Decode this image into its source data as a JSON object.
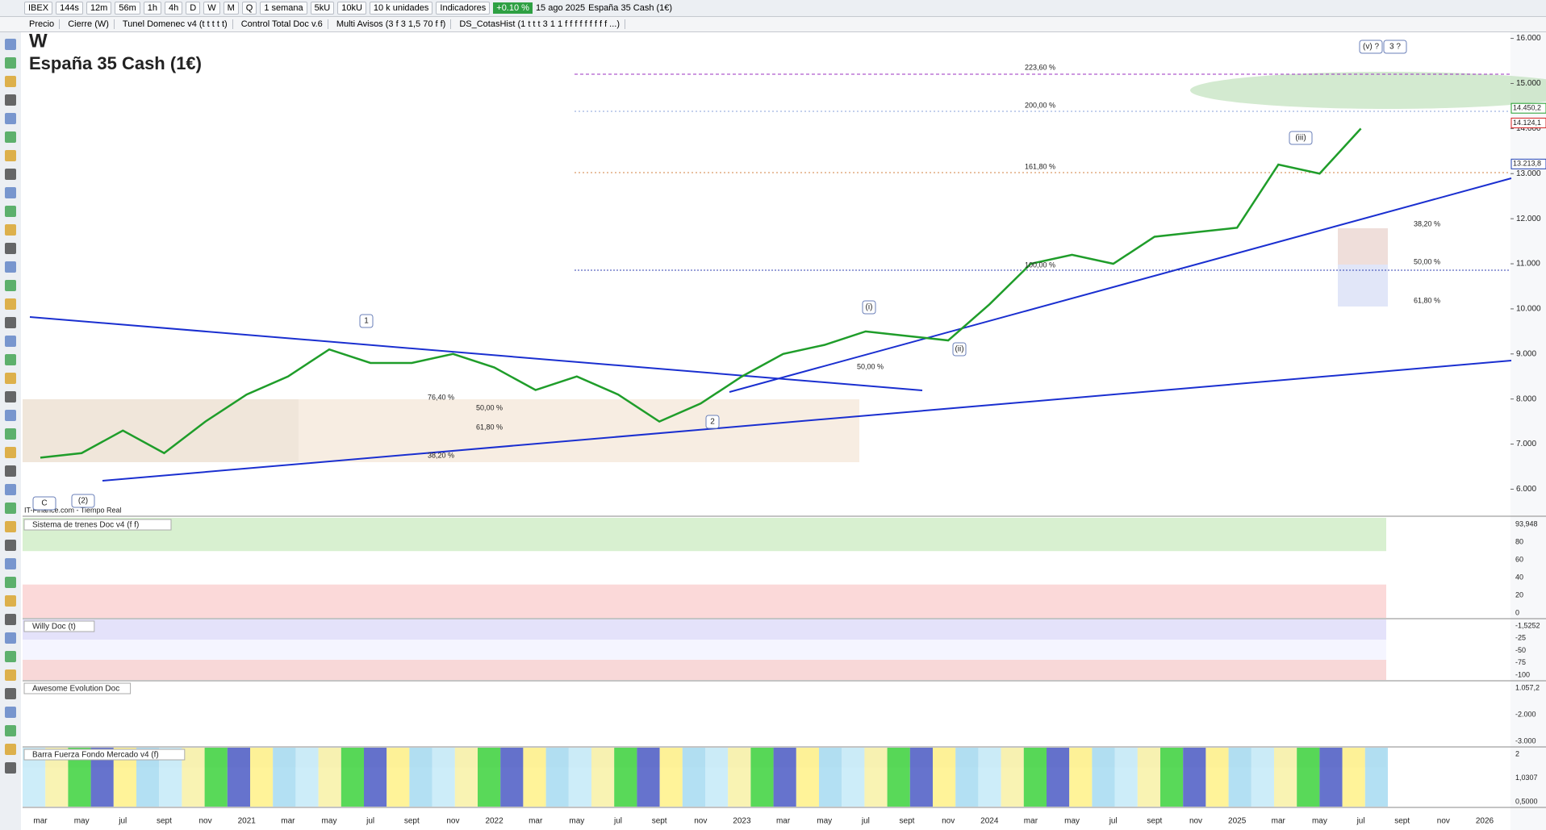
{
  "toolbar": {
    "symbol": "IBEX",
    "timeframes": [
      "144s",
      "12m",
      "56m",
      "1h",
      "4h",
      "D",
      "W",
      "M",
      "Q"
    ],
    "period": "1 semana",
    "units": [
      "5kU",
      "10kU"
    ],
    "units_select": "10 k unidades",
    "indicators": "Indicadores",
    "change": "+0.10 %",
    "date": "15 ago 2025",
    "instrument": "España 35 Cash (1€)"
  },
  "indicator_tabs": [
    "Precio",
    "Cierre (W)",
    "Tunel Domenec v4 (t t t t t)",
    "Control Total Doc v.6",
    "Multi Avisos (3 f 3 1,5 70 f f)",
    "DS_CotasHist (1 t t t 3 1 1 f f f f f f f f f ...)"
  ],
  "chart_data": {
    "type": "line",
    "title": "W",
    "subtitle": "España 35 Cash (1€)",
    "source": "IT-Finance.com - Tiempo Real",
    "categories": [
      "mar",
      "may",
      "jul",
      "sept",
      "nov",
      "2021",
      "mar",
      "may",
      "jul",
      "sept",
      "nov",
      "2022",
      "mar",
      "may",
      "jul",
      "sept",
      "nov",
      "2023",
      "mar",
      "may",
      "jul",
      "sept",
      "nov",
      "2024",
      "mar",
      "may",
      "jul",
      "sept",
      "nov",
      "2025",
      "mar",
      "may",
      "jul",
      "sept",
      "nov",
      "2026"
    ],
    "values": [
      6700,
      6800,
      7300,
      6800,
      7500,
      8100,
      8500,
      9100,
      8800,
      8800,
      9000,
      8700,
      8200,
      8500,
      8100,
      7500,
      7900,
      8500,
      9000,
      9200,
      9500,
      9400,
      9300,
      10100,
      11000,
      11200,
      11000,
      11600,
      11700,
      11800,
      13200,
      13000,
      14000,
      null,
      null,
      null
    ],
    "color": "#1f9d2a",
    "ylim": [
      5400,
      16100
    ],
    "yticks": [
      {
        "value": 6000,
        "label": "6.000"
      },
      {
        "value": 7000,
        "label": "7.000"
      },
      {
        "value": 8000,
        "label": "8.000"
      },
      {
        "value": 9000,
        "label": "9.000"
      },
      {
        "value": 10000,
        "label": "10.000"
      },
      {
        "value": 11000,
        "label": "11.000"
      },
      {
        "value": 12000,
        "label": "12.000"
      },
      {
        "value": 13000,
        "label": "13.000"
      },
      {
        "value": 14000,
        "label": "14.000"
      },
      {
        "value": 15000,
        "label": "15.000"
      },
      {
        "value": 16000,
        "label": "16.000"
      }
    ],
    "price_labels": [
      {
        "value": 14450.2,
        "label": "14.450,2",
        "color": "#1f9d2a"
      },
      {
        "value": 14124.1,
        "label": "14.124,1",
        "color": "#d62020"
      },
      {
        "value": 13213.8,
        "label": "13.213,8",
        "color": "#1f3fb0"
      }
    ],
    "fib_labels": [
      "223,60 %",
      "200,00 %",
      "161,80 %",
      "100,00 %",
      "38,20 %",
      "50,00 %",
      "61,80 %",
      "76,40 %",
      "50,00 %",
      "61,80 %",
      "38,20 %",
      "50,00 %"
    ],
    "wave_labels": [
      "1",
      "2",
      "(i)",
      "(ii)",
      "(iii)",
      "(v) ?",
      "3 ?",
      "(2)",
      "C"
    ]
  },
  "panels": [
    {
      "title": "Sistema de trenes Doc v4 (f f)",
      "ticks": [
        "93,948",
        "80",
        "60",
        "40",
        "20",
        "0"
      ]
    },
    {
      "title": "Willy Doc (t)",
      "ticks": [
        "-1,5252",
        "-25",
        "-50",
        "-75",
        "-100"
      ]
    },
    {
      "title": "Awesome Evolution Doc",
      "ticks": [
        "1.057,2",
        "-2.000",
        "-3.000"
      ]
    },
    {
      "title": "Barra Fuerza Fondo Mercado v4 (f)",
      "ticks": [
        "2",
        "1,0307",
        "0,5000"
      ]
    }
  ]
}
